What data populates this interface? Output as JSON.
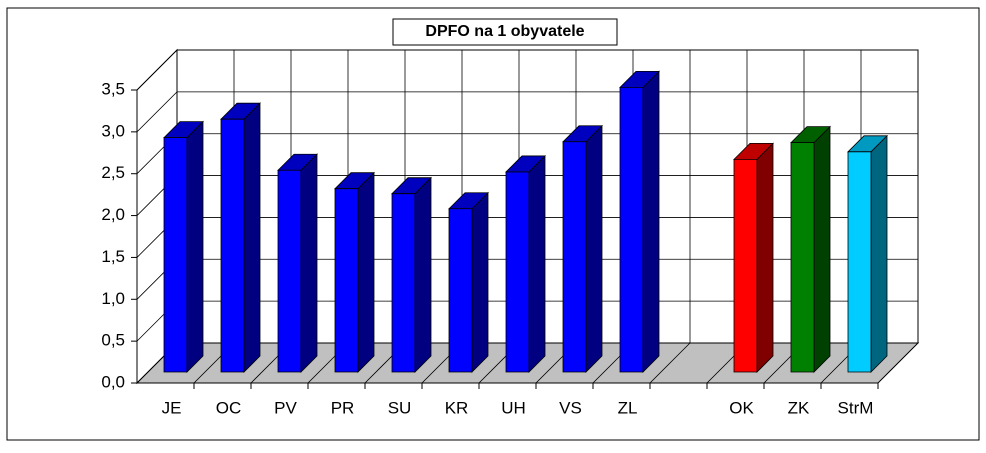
{
  "chart_data": {
    "type": "bar3d",
    "title": "DPFO na 1 obyvatele",
    "categories": [
      "JE",
      "OC",
      "PV",
      "PR",
      "SU",
      "KR",
      "UH",
      "VS",
      "ZL",
      null,
      "OK",
      "ZK",
      "StrM"
    ],
    "values": [
      2.8,
      3.02,
      2.41,
      2.19,
      2.13,
      1.95,
      2.39,
      2.75,
      3.4,
      null,
      2.54,
      2.74,
      2.63
    ],
    "colors": [
      "#0000ff",
      "#0000ff",
      "#0000ff",
      "#0000ff",
      "#0000ff",
      "#0000ff",
      "#0000ff",
      "#0000ff",
      "#0000ff",
      null,
      "#ff0000",
      "#008000",
      "#00ccff"
    ],
    "ylim": [
      0,
      3.5
    ],
    "yticks": [
      {
        "value": 0,
        "label": "0,0"
      },
      {
        "value": 0.5,
        "label": "0,5"
      },
      {
        "value": 1,
        "label": "1,0"
      },
      {
        "value": 1.5,
        "label": "1,5"
      },
      {
        "value": 2,
        "label": "2,0"
      },
      {
        "value": 2.5,
        "label": "2,5"
      },
      {
        "value": 3,
        "label": "3,0"
      },
      {
        "value": 3.5,
        "label": "3,5"
      }
    ],
    "grid": true
  }
}
